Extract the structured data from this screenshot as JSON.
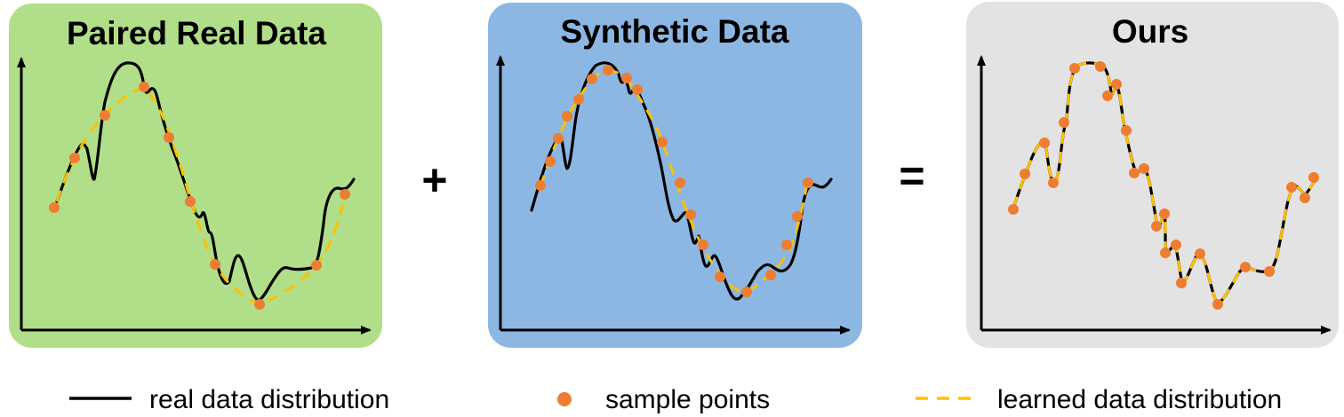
{
  "panels": [
    {
      "id": "paired",
      "title": "Paired Real Data",
      "background": "#b1de88"
    },
    {
      "id": "synthetic",
      "title": "Synthetic Data",
      "background": "#8db7e3"
    },
    {
      "id": "ours",
      "title": "Ours",
      "background": "#e3e3e3"
    }
  ],
  "operators": {
    "plus": "+",
    "equals": "="
  },
  "legend": {
    "real": "real data distribution",
    "sample": "sample points",
    "learned": "learned data distribution"
  },
  "colors": {
    "real_curve": "#000000",
    "sample_point": "#ed7d31",
    "learned_curve": "#ffc000"
  }
}
